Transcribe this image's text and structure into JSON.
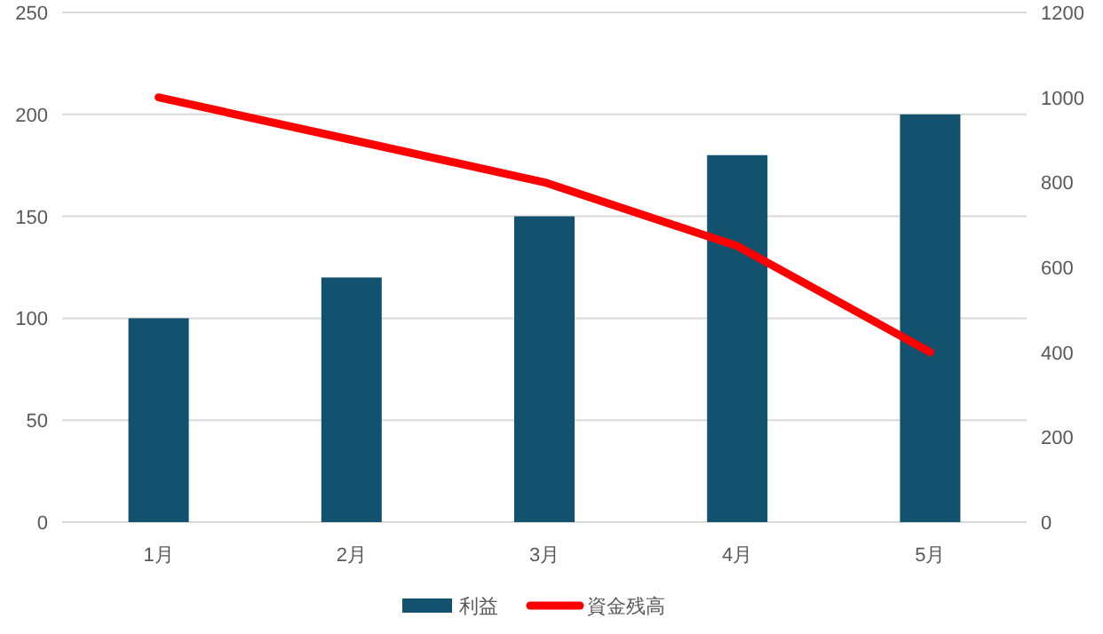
{
  "chart_data": {
    "type": "bar",
    "categories": [
      "1月",
      "2月",
      "3月",
      "4月",
      "5月"
    ],
    "series": [
      {
        "name": "利益",
        "color": "#12526f",
        "values": [
          100,
          120,
          150,
          180,
          200
        ]
      },
      {
        "name": "資金残高",
        "type": "line",
        "color": "#ff0000",
        "axis": "y2",
        "values": [
          1000,
          900,
          800,
          650,
          400
        ]
      }
    ],
    "ylim": [
      0,
      250
    ],
    "yticks": [
      0,
      50,
      100,
      150,
      200,
      250
    ],
    "y2lim": [
      0,
      1200
    ],
    "y2ticks": [
      0,
      200,
      400,
      600,
      800,
      1000,
      1200
    ],
    "grid": "y",
    "legend": "bottom"
  }
}
